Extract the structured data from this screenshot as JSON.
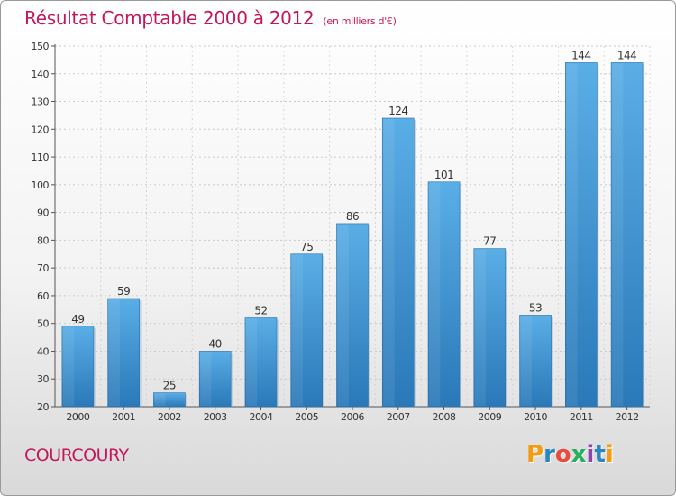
{
  "header": {
    "title": "Résultat Comptable 2000 à 2012",
    "subtitle": "(en milliers d'€)"
  },
  "footer": {
    "town": "COURCOURY",
    "logo_text": "Proxiti",
    "logo_colors": [
      "#f39c12",
      "#2e86c1",
      "#e74c3c",
      "#27ae60",
      "#8e44ad",
      "#2e86c1",
      "#f39c12"
    ]
  },
  "chart_data": {
    "type": "bar",
    "title": "Résultat Comptable 2000 à 2012",
    "subtitle": "(en milliers d'€)",
    "categories": [
      "2000",
      "2001",
      "2002",
      "2003",
      "2004",
      "2005",
      "2006",
      "2007",
      "2008",
      "2009",
      "2010",
      "2011",
      "2012"
    ],
    "values": [
      49,
      59,
      25,
      40,
      52,
      75,
      86,
      124,
      101,
      77,
      53,
      144,
      144
    ],
    "xlabel": "",
    "ylabel": "",
    "ylim": [
      20,
      150
    ],
    "yticks": [
      20,
      30,
      40,
      50,
      60,
      70,
      80,
      90,
      100,
      110,
      120,
      130,
      140,
      150
    ],
    "grid": true,
    "bar_color": "#4fa3e0",
    "bar_color_dark": "#2a78b8",
    "data_labels": true
  }
}
